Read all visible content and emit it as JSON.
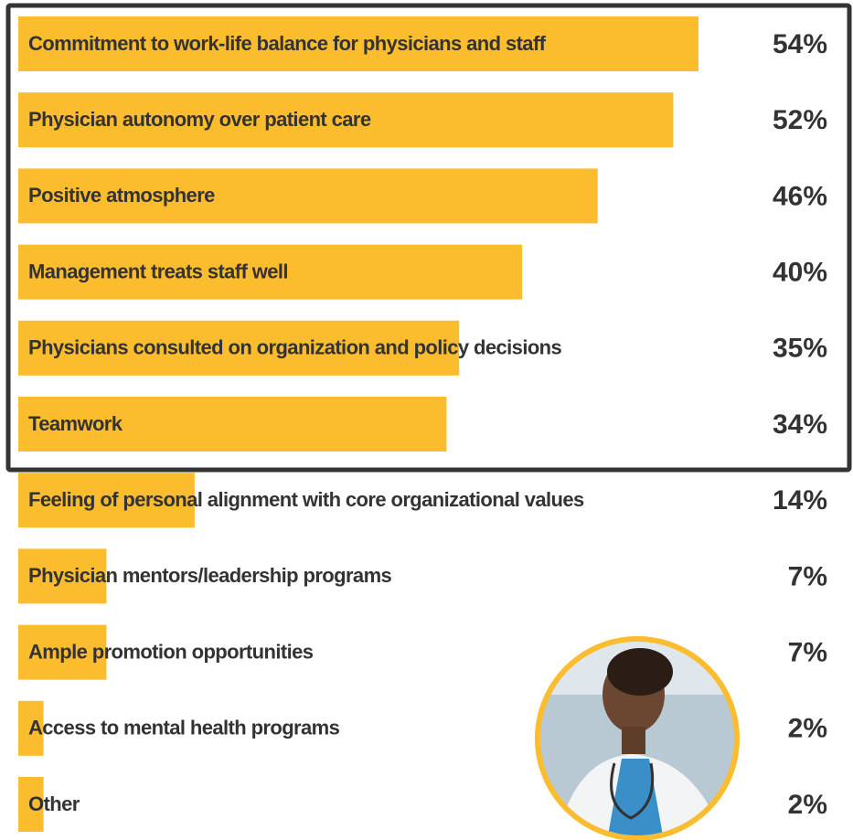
{
  "chart_data": {
    "type": "bar",
    "orientation": "horizontal",
    "categories": [
      "Commitment to work-life balance for physicians and staff",
      "Physician autonomy over patient care",
      "Positive atmosphere",
      "Management treats staff well",
      "Physicians consulted on organization and policy decisions",
      "Teamwork",
      "Feeling of personal alignment with core organizational values",
      "Physician mentors/leadership programs",
      "Ample promotion opportunities",
      "Access to mental health programs",
      "Other"
    ],
    "values": [
      54,
      52,
      46,
      40,
      35,
      34,
      14,
      7,
      7,
      2,
      2
    ],
    "value_labels": [
      "54%",
      "52%",
      "46%",
      "40%",
      "35%",
      "34%",
      "14%",
      "7%",
      "7%",
      "2%",
      "2%"
    ],
    "color": "#fbbc2e",
    "xlim": [
      0,
      54
    ]
  }
}
